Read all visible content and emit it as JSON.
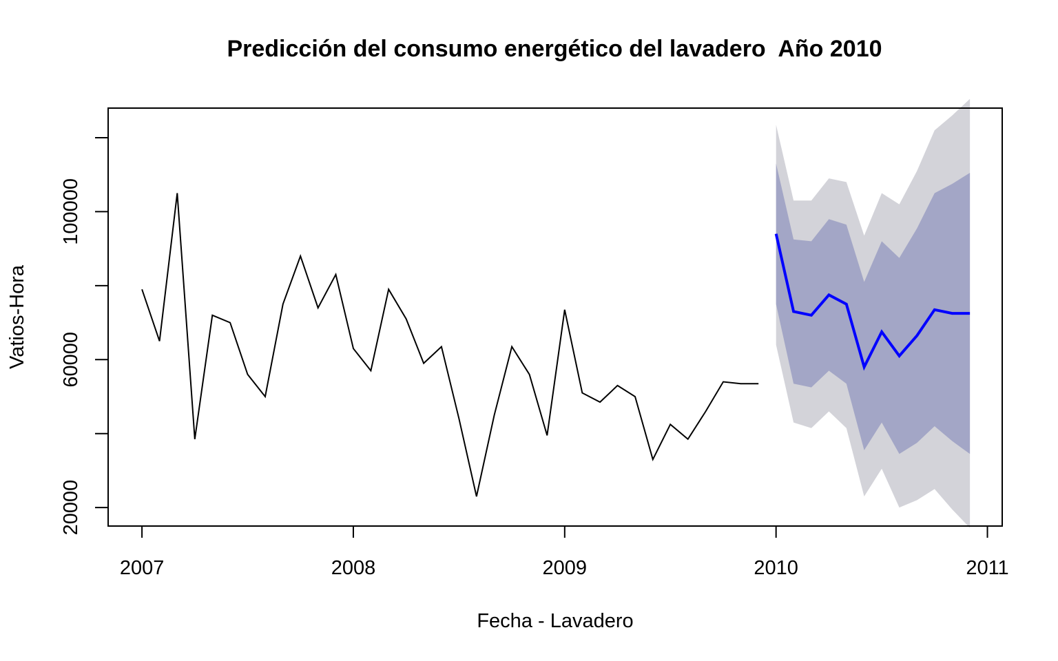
{
  "chart_data": {
    "type": "line",
    "title": "Predicción del consumo energético del lavadero  Año 2010",
    "xlabel": "Fecha - Lavadero",
    "ylabel": "Vatios-Hora",
    "xlim": [
      2006.84,
      2011.07
    ],
    "ylim": [
      15000,
      128000
    ],
    "x_ticks": [
      2007,
      2008,
      2009,
      2010,
      2011
    ],
    "x_tick_labels": [
      "2007",
      "2008",
      "2009",
      "2010",
      "2011"
    ],
    "y_ticks": [
      20000,
      40000,
      60000,
      80000,
      100000,
      120000
    ],
    "y_tick_labels": [
      "20000",
      "",
      "60000",
      "",
      "100000",
      ""
    ],
    "grid": false,
    "series": [
      {
        "role": "observed",
        "color": "#000000",
        "x": [
          2007.0,
          2007.083,
          2007.167,
          2007.25,
          2007.333,
          2007.417,
          2007.5,
          2007.583,
          2007.667,
          2007.75,
          2007.833,
          2007.917,
          2008.0,
          2008.083,
          2008.167,
          2008.25,
          2008.333,
          2008.417,
          2008.5,
          2008.583,
          2008.667,
          2008.75,
          2008.833,
          2008.917,
          2009.0,
          2009.083,
          2009.167,
          2009.25,
          2009.333,
          2009.417,
          2009.5,
          2009.583,
          2009.667,
          2009.75,
          2009.833,
          2009.917
        ],
        "values": [
          79000,
          65000,
          105000,
          38500,
          72000,
          70000,
          56000,
          50000,
          75000,
          88000,
          74000,
          83000,
          63000,
          57000,
          79000,
          71000,
          59000,
          63500,
          44000,
          23000,
          45000,
          63500,
          56000,
          39500,
          73500,
          51000,
          48500,
          53000,
          50000,
          33000,
          42500,
          38500,
          46000,
          54000,
          53500,
          53500
        ]
      },
      {
        "role": "forecast",
        "color": "#0000ff",
        "x": [
          2010.0,
          2010.083,
          2010.167,
          2010.25,
          2010.333,
          2010.417,
          2010.5,
          2010.583,
          2010.667,
          2010.75,
          2010.833,
          2010.917
        ],
        "values": [
          94000,
          73000,
          72000,
          77500,
          75000,
          58000,
          67500,
          61000,
          66500,
          73500,
          72500,
          72500
        ],
        "lower80": [
          75000,
          53500,
          52500,
          57000,
          53500,
          35500,
          43000,
          34500,
          37500,
          42000,
          38000,
          34500
        ],
        "upper80": [
          113000,
          92500,
          92000,
          98000,
          96500,
          81000,
          92000,
          87500,
          95500,
          105000,
          107500,
          110500
        ],
        "lower95": [
          64000,
          43000,
          41500,
          46000,
          41500,
          23000,
          30500,
          20000,
          22000,
          25000,
          19500,
          14500
        ],
        "upper95": [
          123500,
          103000,
          103000,
          109000,
          108000,
          93500,
          105000,
          102000,
          111000,
          122000,
          126000,
          130500
        ]
      }
    ],
    "band_colors": {
      "interval80": "#a3a6c6",
      "interval95": "#d3d3d9"
    }
  }
}
